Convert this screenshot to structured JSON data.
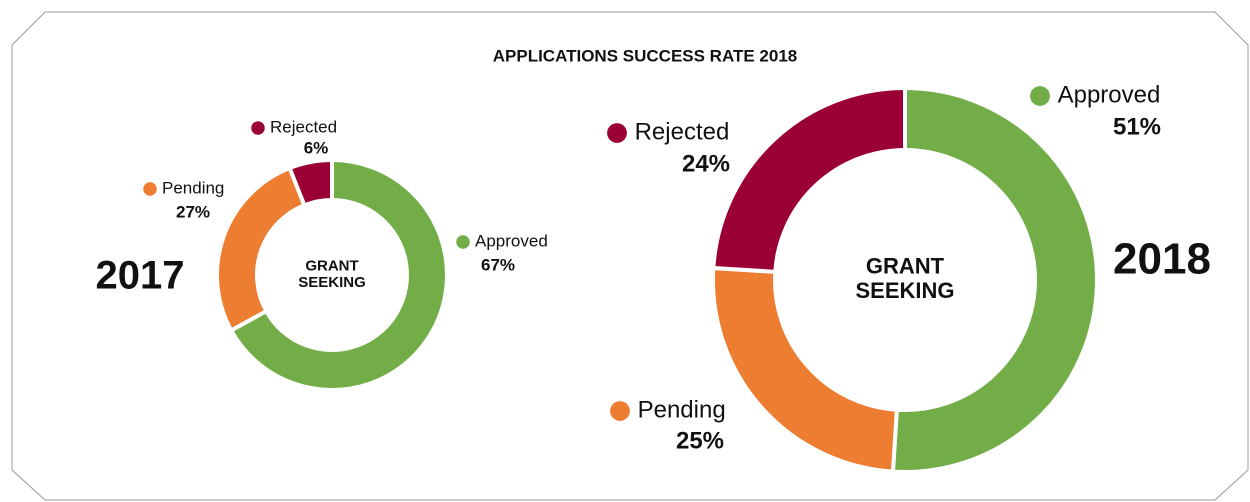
{
  "title": "APPLICATIONS SUCCESS RATE 2018",
  "chart_data": [
    {
      "type": "donut",
      "label": "2017",
      "center_label": [
        "GRANT",
        "SEEKING"
      ],
      "categories": [
        "Approved",
        "Pending",
        "Rejected"
      ],
      "values": [
        67,
        27,
        6
      ],
      "value_labels": [
        "67%",
        "27%",
        "6%"
      ],
      "colors": [
        "#72ad47",
        "#ed7d31",
        "#9a0036"
      ]
    },
    {
      "type": "donut",
      "label": "2018",
      "center_label": [
        "GRANT",
        "SEEKING"
      ],
      "categories": [
        "Approved",
        "Pending",
        "Rejected"
      ],
      "values": [
        51,
        25,
        24
      ],
      "value_labels": [
        "51%",
        "25%",
        "24%"
      ],
      "colors": [
        "#72ad47",
        "#ed7d31",
        "#9a0036"
      ]
    }
  ]
}
